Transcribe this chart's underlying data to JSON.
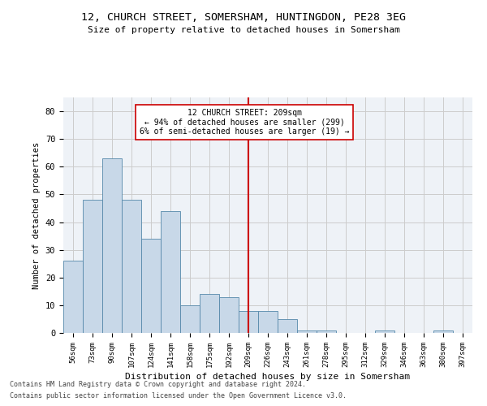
{
  "title_line1": "12, CHURCH STREET, SOMERSHAM, HUNTINGDON, PE28 3EG",
  "title_line2": "Size of property relative to detached houses in Somersham",
  "xlabel": "Distribution of detached houses by size in Somersham",
  "ylabel": "Number of detached properties",
  "bar_labels": [
    "56sqm",
    "73sqm",
    "90sqm",
    "107sqm",
    "124sqm",
    "141sqm",
    "158sqm",
    "175sqm",
    "192sqm",
    "209sqm",
    "226sqm",
    "243sqm",
    "261sqm",
    "278sqm",
    "295sqm",
    "312sqm",
    "329sqm",
    "346sqm",
    "363sqm",
    "380sqm",
    "397sqm"
  ],
  "bar_values": [
    26,
    48,
    63,
    48,
    34,
    44,
    10,
    14,
    13,
    8,
    8,
    5,
    1,
    1,
    0,
    0,
    1,
    0,
    0,
    1,
    0
  ],
  "bar_color": "#c8d8e8",
  "bar_edgecolor": "#5588aa",
  "vline_x": 9,
  "vline_color": "#cc0000",
  "annotation_text": "12 CHURCH STREET: 209sqm\n← 94% of detached houses are smaller (299)\n6% of semi-detached houses are larger (19) →",
  "annotation_box_color": "#ffffff",
  "annotation_box_edgecolor": "#cc0000",
  "ylim": [
    0,
    85
  ],
  "yticks": [
    0,
    10,
    20,
    30,
    40,
    50,
    60,
    70,
    80
  ],
  "grid_color": "#cccccc",
  "background_color": "#eef2f7",
  "footer_line1": "Contains HM Land Registry data © Crown copyright and database right 2024.",
  "footer_line2": "Contains public sector information licensed under the Open Government Licence v3.0."
}
